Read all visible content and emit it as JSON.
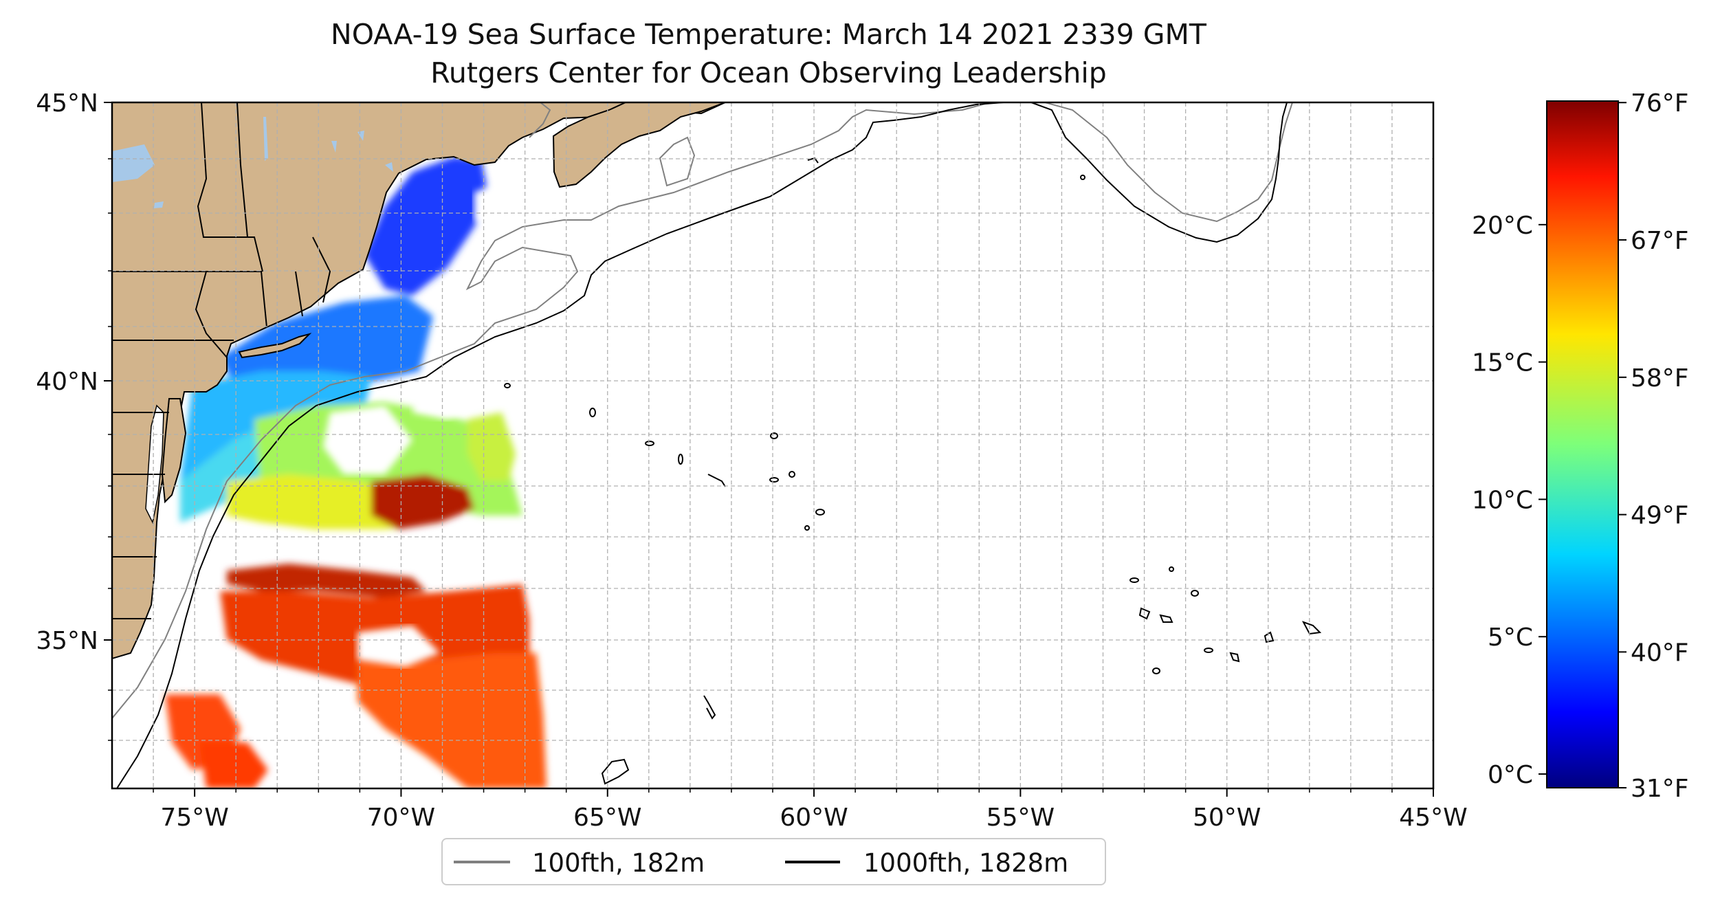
{
  "title": {
    "line1": "NOAA-19 Sea Surface Temperature: March 14 2021 2339 GMT",
    "line2": "Rutgers Center for Ocean Observing Leadership"
  },
  "axes": {
    "x_ticks": [
      "75°W",
      "70°W",
      "65°W",
      "60°W",
      "55°W",
      "50°W",
      "45°W"
    ],
    "y_ticks": [
      "45°N",
      "40°N",
      "35°N"
    ]
  },
  "colorbar": {
    "celsius_ticks": [
      "20°C",
      "15°C",
      "10°C",
      "5°C",
      "0°C"
    ],
    "fahrenheit_ticks": [
      "76°F",
      "67°F",
      "58°F",
      "49°F",
      "40°F",
      "31°F"
    ],
    "colormap": "jet",
    "range_c": [
      -0.5,
      24.5
    ]
  },
  "legend": {
    "items": [
      {
        "label": "100fth, 182m",
        "color": "#808080"
      },
      {
        "label": "1000fth, 1828m",
        "color": "#000000"
      }
    ]
  },
  "colors": {
    "land": "#d2b48c",
    "lakes": "#a6c8e8",
    "grid": "#b0b0b0",
    "isobath_100fth": "#808080",
    "isobath_1000fth": "#000000"
  }
}
